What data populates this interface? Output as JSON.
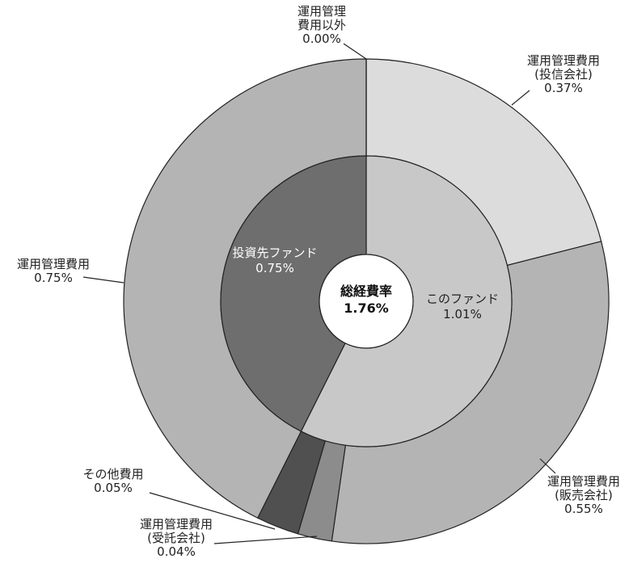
{
  "chart_data": {
    "type": "pie",
    "center": {
      "title": "総経費率",
      "value": "1.76%"
    },
    "inner": [
      {
        "label": "このファンド",
        "value_text": "1.01%",
        "value": 1.01,
        "color": "#c8c8c8",
        "text_color": "#222222"
      },
      {
        "label": "投資先ファンド",
        "value_text": "0.75%",
        "value": 0.75,
        "color": "#6e6e6e",
        "text_color": "#ffffff"
      }
    ],
    "outer": [
      {
        "lines": [
          "運用管理",
          "費用以外"
        ],
        "value_text": "0.00%",
        "value": 0.0,
        "color": "#b4b4b4"
      },
      {
        "lines": [
          "運用管理費用",
          "(投信会社)"
        ],
        "value_text": "0.37%",
        "value": 0.37,
        "color": "#dcdcdc"
      },
      {
        "lines": [
          "運用管理費用",
          "(販売会社)"
        ],
        "value_text": "0.55%",
        "value": 0.55,
        "color": "#b4b4b4"
      },
      {
        "lines": [
          "運用管理費用",
          "(受託会社)"
        ],
        "value_text": "0.04%",
        "value": 0.04,
        "color": "#8c8c8c"
      },
      {
        "lines": [
          "その他費用"
        ],
        "value_text": "0.05%",
        "value": 0.05,
        "color": "#505050"
      },
      {
        "lines": [
          "運用管理費用"
        ],
        "value_text": "0.75%",
        "value": 0.75,
        "color": "#b4b4b4"
      }
    ]
  }
}
